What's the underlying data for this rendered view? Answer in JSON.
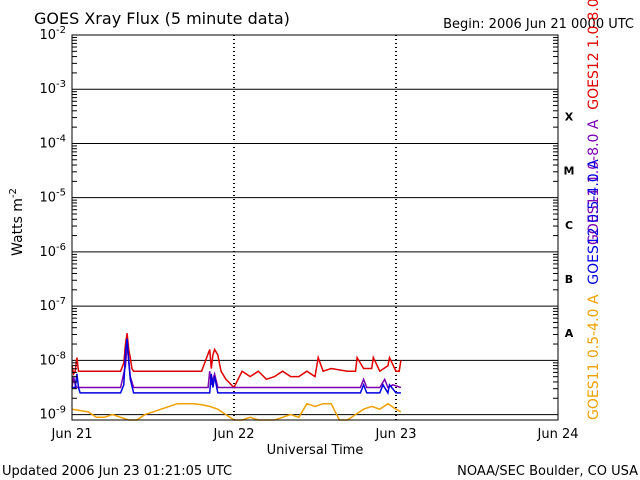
{
  "chart_data": {
    "type": "line",
    "title": "GOES Xray Flux (5 minute data)",
    "begin_label": "Begin:  2006 Jun 21 0000 UTC",
    "xlabel": "Universal Time",
    "ylabel": "Watts m",
    "ylabel_exponent": "-2",
    "updated_label": "Updated 2006 Jun 23 01:21:05 UTC",
    "credit_label": "NOAA/SEC Boulder, CO USA",
    "y_scale": "log",
    "ylim_exponents": [
      -9.1,
      -2
    ],
    "y_ticks": [
      {
        "base": "10",
        "exp": "-2",
        "value": -2
      },
      {
        "base": "10",
        "exp": "-3",
        "value": -3
      },
      {
        "base": "10",
        "exp": "-4",
        "value": -4
      },
      {
        "base": "10",
        "exp": "-5",
        "value": -5
      },
      {
        "base": "10",
        "exp": "-6",
        "value": -6
      },
      {
        "base": "10",
        "exp": "-7",
        "value": -7
      },
      {
        "base": "10",
        "exp": "-8",
        "value": -8
      },
      {
        "base": "10",
        "exp": "-9",
        "value": -9
      }
    ],
    "xlim_days": [
      0,
      3
    ],
    "x_ticks": [
      {
        "label": "Jun 21",
        "day": 0
      },
      {
        "label": "Jun 22",
        "day": 1
      },
      {
        "label": "Jun 23",
        "day": 2
      },
      {
        "label": "Jun 24",
        "day": 3
      }
    ],
    "flare_classes": [
      {
        "label": "X",
        "value": -3.5
      },
      {
        "label": "M",
        "value": -4.5
      },
      {
        "label": "C",
        "value": -5.5
      },
      {
        "label": "B",
        "value": -6.5
      },
      {
        "label": "A",
        "value": -7.5
      }
    ],
    "colors": {
      "goes11_long": "#7a00b0",
      "goes12_long": "#e00000",
      "goes11_short": "#f0a000",
      "goes12_short": "#0000e0",
      "grid": "#000000"
    },
    "series": [
      {
        "name": "GOES12 1.0-8.0 A",
        "key": "goes12_long",
        "x": [
          0,
          0.01,
          0.02,
          0.03,
          0.04,
          0.05,
          0.1,
          0.2,
          0.3,
          0.32,
          0.33,
          0.34,
          0.35,
          0.36,
          0.37,
          0.38,
          0.4,
          0.5,
          0.6,
          0.7,
          0.8,
          0.85,
          0.86,
          0.87,
          0.88,
          0.9,
          0.92,
          0.95,
          1.0,
          1.05,
          1.1,
          1.15,
          1.2,
          1.25,
          1.3,
          1.35,
          1.4,
          1.45,
          1.5,
          1.52,
          1.55,
          1.6,
          1.7,
          1.75,
          1.76,
          1.8,
          1.85,
          1.86,
          1.9,
          1.95,
          1.96,
          2.0,
          2.02,
          2.03
        ],
        "y": [
          -8.1,
          -8.25,
          -8.2,
          -7.95,
          -8.2,
          -8.2,
          -8.2,
          -8.2,
          -8.2,
          -8.05,
          -7.7,
          -7.5,
          -7.8,
          -7.95,
          -8.15,
          -8.2,
          -8.2,
          -8.2,
          -8.2,
          -8.2,
          -8.2,
          -7.8,
          -8.15,
          -7.9,
          -7.8,
          -7.9,
          -8.2,
          -8.35,
          -8.5,
          -8.2,
          -8.3,
          -8.2,
          -8.35,
          -8.3,
          -8.2,
          -8.3,
          -8.3,
          -8.2,
          -8.3,
          -7.95,
          -8.2,
          -8.15,
          -8.2,
          -8.2,
          -7.95,
          -8.15,
          -8.15,
          -7.95,
          -8.2,
          -8.1,
          -7.95,
          -8.2,
          -8.2,
          -8.0
        ]
      },
      {
        "name": "GOES11 1.0-8.0 A",
        "key": "goes11_long",
        "x": [
          0,
          0.01,
          0.02,
          0.03,
          0.04,
          0.05,
          0.1,
          0.2,
          0.3,
          0.33,
          0.34,
          0.35,
          0.36,
          0.38,
          0.4,
          0.6,
          0.8,
          0.84,
          0.85,
          0.86,
          0.88,
          0.9,
          1.0,
          1.2,
          1.4,
          1.6,
          1.78,
          1.8,
          1.82,
          1.9,
          1.93,
          1.95,
          1.98,
          2.03
        ],
        "y": [
          -8.5,
          -8.3,
          -8.45,
          -8.5,
          -8.5,
          -8.5,
          -8.5,
          -8.5,
          -8.5,
          -8.1,
          -7.7,
          -8.0,
          -8.3,
          -8.5,
          -8.5,
          -8.5,
          -8.5,
          -8.5,
          -8.2,
          -8.45,
          -8.25,
          -8.5,
          -8.5,
          -8.5,
          -8.5,
          -8.5,
          -8.5,
          -8.35,
          -8.5,
          -8.5,
          -8.35,
          -8.5,
          -8.45,
          -8.5
        ]
      },
      {
        "name": "GOES12 0.5-4.0 A",
        "key": "goes12_short",
        "x": [
          0,
          0.02,
          0.03,
          0.04,
          0.05,
          0.06,
          0.1,
          0.3,
          0.32,
          0.33,
          0.34,
          0.35,
          0.36,
          0.38,
          0.4,
          0.6,
          0.8,
          0.85,
          0.86,
          0.87,
          0.88,
          0.9,
          0.95,
          1.0,
          1.2,
          1.4,
          1.45,
          1.5,
          1.6,
          1.78,
          1.8,
          1.82,
          1.9,
          1.92,
          1.95,
          1.96,
          2.0,
          2.03
        ],
        "y": [
          -8.5,
          -8.5,
          -8.25,
          -8.5,
          -8.6,
          -8.6,
          -8.6,
          -8.6,
          -8.45,
          -7.85,
          -7.6,
          -8.0,
          -8.35,
          -8.6,
          -8.6,
          -8.6,
          -8.6,
          -8.6,
          -8.25,
          -8.5,
          -8.3,
          -8.6,
          -8.6,
          -8.6,
          -8.6,
          -8.6,
          -8.6,
          -8.6,
          -8.6,
          -8.6,
          -8.45,
          -8.6,
          -8.6,
          -8.45,
          -8.6,
          -8.45,
          -8.6,
          -8.6
        ]
      },
      {
        "name": "GOES11 0.5-4.0 A",
        "key": "goes11_short",
        "x": [
          0,
          0.1,
          0.15,
          0.2,
          0.25,
          0.3,
          0.35,
          0.4,
          0.45,
          0.5,
          0.55,
          0.6,
          0.65,
          0.7,
          0.75,
          0.8,
          0.85,
          0.9,
          0.95,
          1.0,
          1.05,
          1.1,
          1.15,
          1.2,
          1.25,
          1.3,
          1.35,
          1.4,
          1.45,
          1.5,
          1.55,
          1.6,
          1.65,
          1.7,
          1.75,
          1.8,
          1.85,
          1.9,
          1.95,
          2.0,
          2.03
        ],
        "y": [
          -8.9,
          -8.95,
          -9.05,
          -9.05,
          -9.0,
          -9.05,
          -9.1,
          -9.1,
          -9.0,
          -8.95,
          -8.9,
          -8.85,
          -8.8,
          -8.8,
          -8.8,
          -8.82,
          -8.85,
          -8.9,
          -9.0,
          -9.1,
          -9.1,
          -9.05,
          -9.1,
          -9.1,
          -9.1,
          -9.05,
          -9.0,
          -9.05,
          -8.8,
          -8.85,
          -8.8,
          -8.8,
          -9.1,
          -9.1,
          -9.0,
          -8.9,
          -8.85,
          -8.9,
          -8.8,
          -8.9,
          -8.95
        ]
      }
    ]
  }
}
